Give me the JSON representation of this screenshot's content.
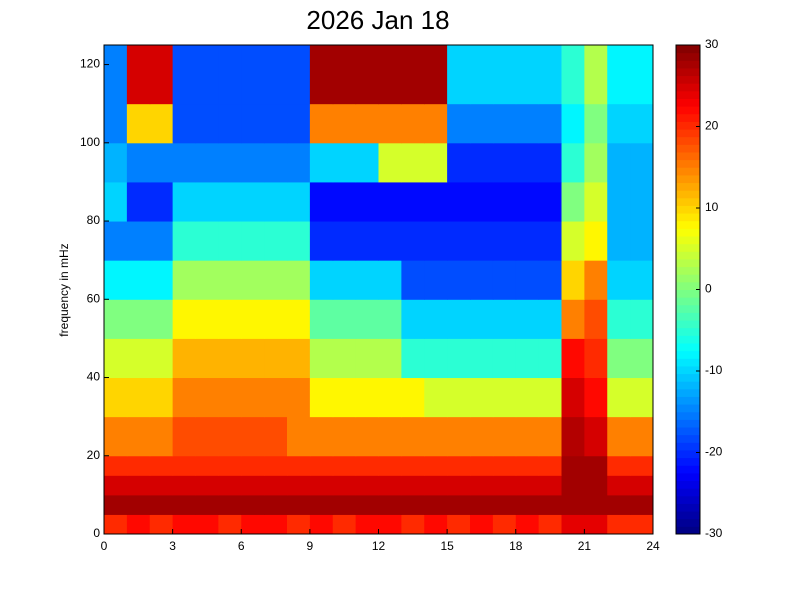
{
  "chart_data": {
    "type": "heatmap",
    "title": "2026 Jan 18",
    "y_label": "frequency in mHz",
    "xlim": [
      0,
      24
    ],
    "ylim": [
      0,
      125
    ],
    "xticks": [
      0,
      3,
      6,
      9,
      12,
      15,
      18,
      21,
      24
    ],
    "yticks": [
      0,
      20,
      40,
      60,
      80,
      100,
      120
    ],
    "x_bins": [
      0,
      1,
      2,
      3,
      4,
      5,
      6,
      7,
      8,
      9,
      10,
      11,
      12,
      13,
      14,
      15,
      16,
      17,
      18,
      19,
      20,
      21,
      22,
      23,
      24
    ],
    "y_bins": [
      0,
      5,
      10,
      15,
      20,
      30,
      40,
      50,
      60,
      70,
      80,
      90,
      100,
      110,
      125
    ],
    "clim": [
      -30,
      30
    ],
    "colorbar_ticks": [
      -30,
      -20,
      -10,
      0,
      10,
      20,
      30
    ],
    "colormap": "jet",
    "values": [
      [
        20,
        22,
        20,
        22,
        22,
        20,
        22,
        22,
        20,
        22,
        20,
        22,
        22,
        20,
        22,
        20,
        22,
        20,
        22,
        20,
        24,
        24,
        20,
        20
      ],
      [
        28,
        28,
        28,
        28,
        28,
        28,
        28,
        28,
        28,
        28,
        28,
        28,
        28,
        28,
        28,
        28,
        28,
        28,
        28,
        28,
        28,
        28,
        28,
        28
      ],
      [
        25,
        25,
        25,
        25,
        25,
        25,
        25,
        25,
        25,
        25,
        25,
        25,
        25,
        25,
        25,
        25,
        25,
        25,
        25,
        25,
        28,
        28,
        25,
        25
      ],
      [
        20,
        20,
        20,
        20,
        20,
        20,
        20,
        20,
        20,
        20,
        20,
        20,
        20,
        20,
        20,
        20,
        20,
        20,
        20,
        20,
        28,
        28,
        20,
        20
      ],
      [
        15,
        15,
        15,
        18,
        18,
        18,
        18,
        18,
        15,
        15,
        15,
        15,
        15,
        15,
        15,
        15,
        15,
        15,
        15,
        15,
        27,
        25,
        15,
        15
      ],
      [
        10,
        10,
        10,
        15,
        15,
        15,
        15,
        15,
        15,
        8,
        8,
        8,
        8,
        8,
        5,
        5,
        5,
        5,
        5,
        5,
        25,
        22,
        5,
        5
      ],
      [
        5,
        5,
        5,
        12,
        12,
        12,
        12,
        12,
        12,
        3,
        3,
        3,
        3,
        -5,
        -5,
        -5,
        -5,
        -5,
        -5,
        -5,
        22,
        20,
        0,
        0
      ],
      [
        0,
        0,
        0,
        8,
        8,
        8,
        8,
        8,
        8,
        -2,
        -2,
        -2,
        -2,
        -10,
        -10,
        -10,
        -10,
        -10,
        -10,
        -10,
        15,
        18,
        -5,
        -5
      ],
      [
        -8,
        -8,
        -8,
        2,
        2,
        2,
        2,
        2,
        2,
        -10,
        -10,
        -10,
        -10,
        -18,
        -18,
        -18,
        -18,
        -18,
        -18,
        -18,
        10,
        15,
        -10,
        -10
      ],
      [
        -15,
        -15,
        -15,
        -5,
        -5,
        -5,
        -5,
        -5,
        -5,
        -20,
        -20,
        -20,
        -20,
        -20,
        -20,
        -20,
        -20,
        -20,
        -20,
        -20,
        5,
        8,
        -12,
        -12
      ],
      [
        -10,
        -20,
        -20,
        -10,
        -10,
        -10,
        -10,
        -10,
        -10,
        -22,
        -22,
        -22,
        -22,
        -22,
        -22,
        -22,
        -22,
        -22,
        -22,
        -22,
        0,
        5,
        -12,
        -12
      ],
      [
        -12,
        -15,
        -15,
        -15,
        -15,
        -15,
        -15,
        -15,
        -15,
        -10,
        -10,
        -10,
        5,
        5,
        5,
        -20,
        -20,
        -20,
        -20,
        -20,
        -5,
        2,
        -12,
        -12
      ],
      [
        -15,
        10,
        10,
        -18,
        -18,
        -18,
        -18,
        -18,
        -18,
        15,
        15,
        15,
        15,
        15,
        15,
        -15,
        -15,
        -15,
        -15,
        -15,
        -8,
        0,
        -10,
        -10
      ],
      [
        -15,
        25,
        25,
        -18,
        -18,
        -18,
        -18,
        -18,
        -18,
        28,
        28,
        28,
        28,
        28,
        28,
        -10,
        -10,
        -10,
        -10,
        -10,
        -5,
        3,
        -8,
        -8
      ]
    ]
  }
}
